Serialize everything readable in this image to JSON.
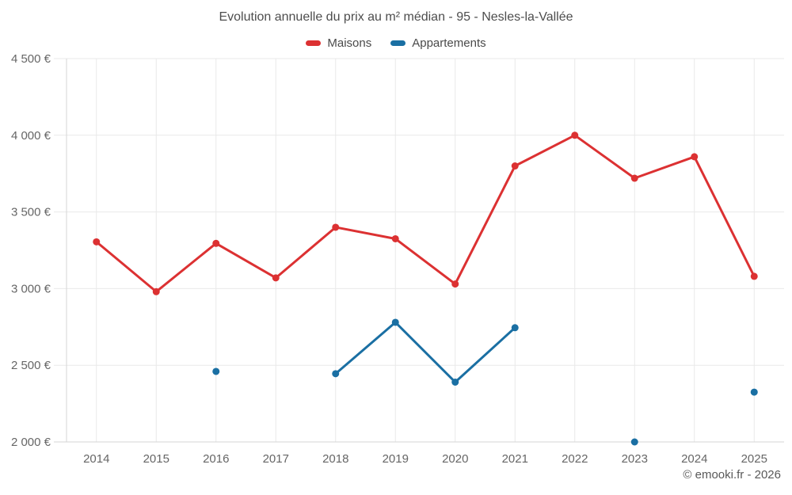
{
  "header": {
    "title": "Evolution annuelle du prix au m² médian - 95 - Nesles-la-Vallée"
  },
  "footer": {
    "copyright": "© emooki.fr - 2026"
  },
  "chart_data": {
    "type": "line",
    "title": "Evolution annuelle du prix au m² médian - 95 - Nesles-la-Vallée",
    "categories": [
      "2014",
      "2015",
      "2016",
      "2017",
      "2018",
      "2019",
      "2020",
      "2021",
      "2022",
      "2023",
      "2024",
      "2025"
    ],
    "series": [
      {
        "name": "Maisons",
        "color": "#dc3132",
        "values": [
          3305,
          2980,
          3295,
          3070,
          3400,
          3325,
          3030,
          3800,
          4000,
          3720,
          3860,
          3080
        ]
      },
      {
        "name": "Appartements",
        "color": "#1a6fa3",
        "values": [
          null,
          null,
          2460,
          null,
          2445,
          2780,
          2390,
          2745,
          null,
          2000,
          null,
          2325
        ]
      }
    ],
    "xlabel": "",
    "ylabel": "",
    "ylim": [
      2000,
      4500
    ],
    "ytick_step": 500,
    "ytick_labels": [
      "2 000 €",
      "2 500 €",
      "3 000 €",
      "3 500 €",
      "4 000 €",
      "4 500 €"
    ],
    "currency_suffix": "€",
    "grid": true,
    "legend_position": "top",
    "marker": "circle"
  },
  "style": {
    "grid_color": "#e9e9e9",
    "axis_color": "#d6d6d6",
    "tick_label_color": "#666666"
  }
}
